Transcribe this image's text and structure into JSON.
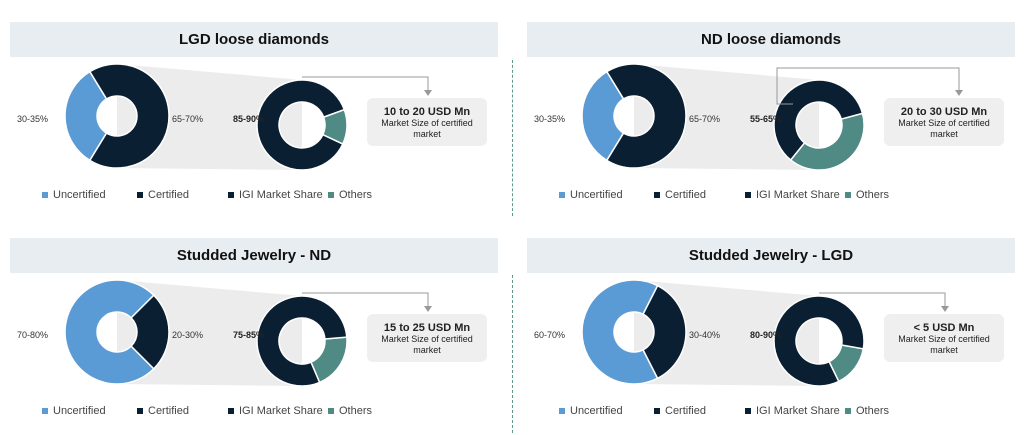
{
  "colors": {
    "uncertified": "#5b9bd5",
    "certified": "#0b1f33",
    "igi": "#0b1f33",
    "others": "#4f8a85",
    "connector": "#ececec"
  },
  "legend": {
    "uncertified": "Uncertified",
    "certified": "Certified",
    "igi": "IGI Market Share",
    "others": "Others"
  },
  "chart_data": [
    {
      "type": "pie",
      "title": "LGD loose diamonds",
      "overall": {
        "categories": [
          "Uncertified",
          "Certified"
        ],
        "values": [
          32.5,
          67.5
        ],
        "labels": [
          "30-35%",
          "65-70%"
        ]
      },
      "certified_split": {
        "categories": [
          "IGI Market Share",
          "Others"
        ],
        "values": [
          87.5,
          12.5
        ],
        "labels": [
          "85-90%",
          ""
        ]
      },
      "market_size": "10 to 20 USD Mn",
      "market_caption": "Market Size of certified market"
    },
    {
      "type": "pie",
      "title": "ND loose diamonds",
      "overall": {
        "categories": [
          "Uncertified",
          "Certified"
        ],
        "values": [
          32.5,
          67.5
        ],
        "labels": [
          "30-35%",
          "65-70%"
        ]
      },
      "certified_split": {
        "categories": [
          "IGI Market Share",
          "Others"
        ],
        "values": [
          60,
          40
        ],
        "labels": [
          "55-65%",
          ""
        ]
      },
      "market_size": "20 to 30 USD Mn",
      "market_caption": "Market Size of certified market"
    },
    {
      "type": "pie",
      "title": "Studded Jewelry - ND",
      "overall": {
        "categories": [
          "Uncertified",
          "Certified"
        ],
        "values": [
          75,
          25
        ],
        "labels": [
          "70-80%",
          "20-30%"
        ]
      },
      "certified_split": {
        "categories": [
          "IGI Market Share",
          "Others"
        ],
        "values": [
          80,
          20
        ],
        "labels": [
          "75-85%",
          ""
        ]
      },
      "market_size": "15 to 25 USD Mn",
      "market_caption": "Market Size of certified market"
    },
    {
      "type": "pie",
      "title": "Studded Jewelry - LGD",
      "overall": {
        "categories": [
          "Uncertified",
          "Certified"
        ],
        "values": [
          65,
          35
        ],
        "labels": [
          "60-70%",
          "30-40%"
        ]
      },
      "certified_split": {
        "categories": [
          "IGI Market Share",
          "Others"
        ],
        "values": [
          85,
          15
        ],
        "labels": [
          "80-90%",
          ""
        ]
      },
      "market_size": "< 5 USD Mn",
      "market_caption": "Market Size of certified market"
    }
  ]
}
